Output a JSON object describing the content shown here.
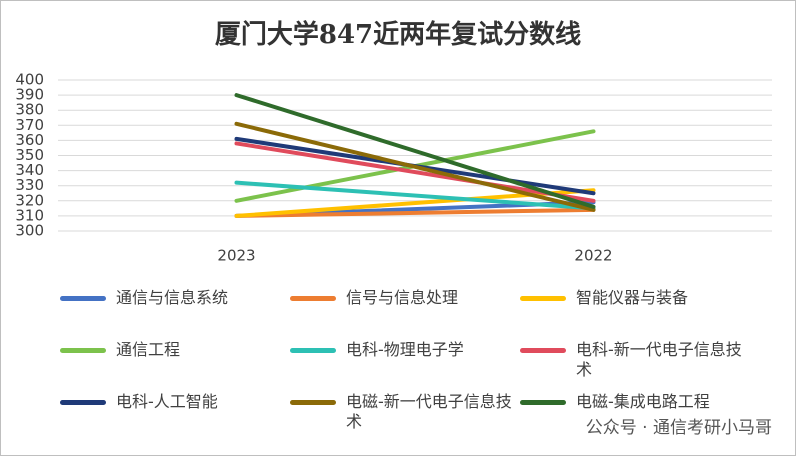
{
  "chart_data": {
    "type": "line",
    "title": "厦门大学847近两年复试分数线",
    "categories": [
      "2023",
      "2022"
    ],
    "ylim": [
      300,
      400
    ],
    "yticks": [
      300,
      310,
      320,
      330,
      340,
      350,
      360,
      370,
      380,
      390,
      400
    ],
    "grid": true,
    "series": [
      {
        "name": "通信与信息系统",
        "color": "#4472c4",
        "values": [
          310,
          319
        ]
      },
      {
        "name": "信号与信息处理",
        "color": "#ed7d31",
        "values": [
          310,
          314
        ]
      },
      {
        "name": "智能仪器与装备",
        "color": "#ffc000",
        "values": [
          310,
          327
        ]
      },
      {
        "name": "通信工程",
        "color": "#7cc24c",
        "values": [
          320,
          366
        ]
      },
      {
        "name": "电科-物理电子学",
        "color": "#2dc0b4",
        "values": [
          332,
          315
        ]
      },
      {
        "name": "电科-新一代电子信息技术",
        "color": "#e04b5c",
        "values": [
          358,
          320
        ]
      },
      {
        "name": "电科-人工智能",
        "color": "#1f3a78",
        "values": [
          361,
          325
        ]
      },
      {
        "name": "电磁-新一代电子信息技术",
        "color": "#8b6a08",
        "values": [
          371,
          314
        ]
      },
      {
        "name": "电磁-集成电路工程",
        "color": "#2f6b2b",
        "values": [
          390,
          316
        ]
      }
    ],
    "watermark": "公众号 · 通信考研小马哥"
  }
}
